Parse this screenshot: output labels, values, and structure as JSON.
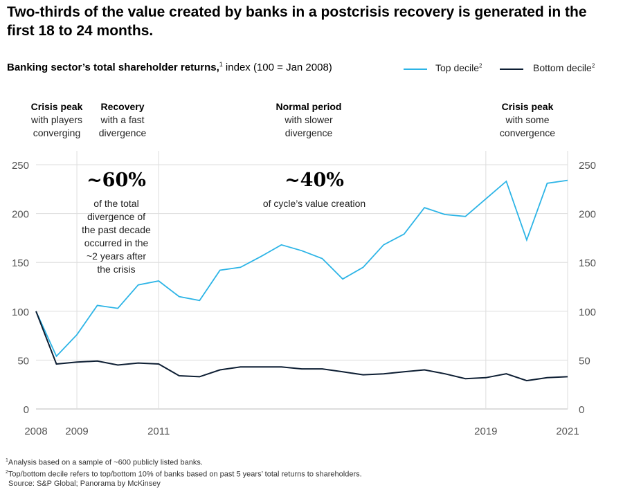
{
  "header": {
    "title": "Two-thirds of the value created by banks in a postcrisis recovery is generated in the first 18 to 24 months.",
    "subtitle_bold": "Banking sector’s total shareholder returns,",
    "subtitle_sup": "1",
    "subtitle_rest": " index (100 = Jan 2008)"
  },
  "legend": {
    "top_label": "Top decile",
    "top_sup": "2",
    "bottom_label": "Bottom decile",
    "bottom_sup": "2"
  },
  "phases": [
    {
      "head": "Crisis peak",
      "line1": "with players",
      "line2": "converging"
    },
    {
      "head": "Recovery",
      "line1": "with a fast",
      "line2": "divergence"
    },
    {
      "head": "Normal period",
      "line1": "with slower",
      "line2": "divergence"
    },
    {
      "head": "Crisis peak",
      "line1": "with some",
      "line2": "convergence"
    }
  ],
  "annotations": {
    "left_big": "~60%",
    "left_lines": [
      "of the total",
      "divergence of",
      "the past decade",
      "occurred in the",
      "~2 years after",
      "the crisis"
    ],
    "mid_big": "~40%",
    "mid_line": "of cycle’s value creation"
  },
  "footnotes": {
    "f1_sup": "1",
    "f1": "Analysis based on a sample of ~600 publicly listed banks.",
    "f2_sup": "2",
    "f2": "Top/bottom decile refers to top/bottom 10% of banks based on past 5 years’ total returns to shareholders.",
    "source": "Source: S&P Global; Panorama by McKinsey"
  },
  "colors": {
    "top_decile": "#2cb4e6",
    "bottom_decile": "#0d1e33",
    "grid": "#dddddd",
    "axis_text": "#555555"
  },
  "chart_data": {
    "type": "line",
    "x_tick_labels": [
      "2008",
      "2009",
      "2011",
      "2019",
      "2021"
    ],
    "yticks": [
      0,
      50,
      100,
      150,
      200,
      250
    ],
    "ylim": [
      0,
      250
    ],
    "grid": true,
    "legend_position": "top-right",
    "series": [
      {
        "name": "Top decile",
        "color": "#2cb4e6",
        "values": [
          100,
          54,
          76,
          106,
          103,
          127,
          131,
          115,
          111,
          142,
          145,
          156,
          168,
          162,
          154,
          133,
          145,
          168,
          179,
          206,
          199,
          197,
          215,
          233,
          173,
          231,
          234
        ]
      },
      {
        "name": "Bottom decile",
        "color": "#0d1e33",
        "values": [
          100,
          46,
          48,
          49,
          45,
          47,
          46,
          34,
          33,
          40,
          43,
          43,
          43,
          41,
          41,
          38,
          35,
          36,
          38,
          40,
          36,
          31,
          32,
          36,
          29,
          32,
          33
        ]
      }
    ]
  }
}
